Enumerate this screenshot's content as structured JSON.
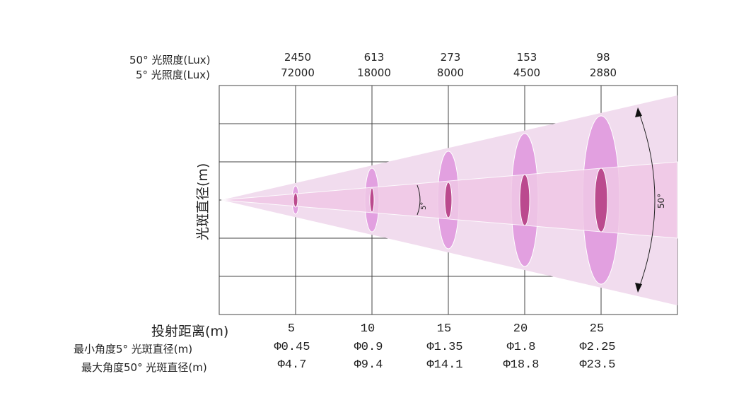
{
  "header": {
    "row50_label": "50° 光照度(Lux)",
    "row5_label": "5° 光照度(Lux)",
    "lux50": [
      "2450",
      "613",
      "273",
      "153",
      "98"
    ],
    "lux5": [
      "72000",
      "18000",
      "8000",
      "4500",
      "2880"
    ]
  },
  "y_axis_label": "光斑直径(m)",
  "angles": {
    "narrow": "5°",
    "wide": "50°"
  },
  "footer": {
    "distance_label": "投射距离(m)",
    "distances": [
      "5",
      "10",
      "15",
      "20",
      "25"
    ],
    "min_label": "最小角度5° 光斑直径(m)",
    "max_label": "最大角度50° 光斑直径(m)",
    "min_diam": [
      "Φ0.45",
      "Φ0.9",
      "Φ1.35",
      "Φ1.8",
      "Φ2.25"
    ],
    "max_diam": [
      "Φ4.7",
      "Φ9.4",
      "Φ14.1",
      "Φ18.8",
      "Φ23.5"
    ]
  },
  "colors": {
    "outer": "#f1dcee",
    "inner": "#f0c8e6",
    "big_spot": "#e2a0e0",
    "small_spot": "#bb4a8e"
  }
}
